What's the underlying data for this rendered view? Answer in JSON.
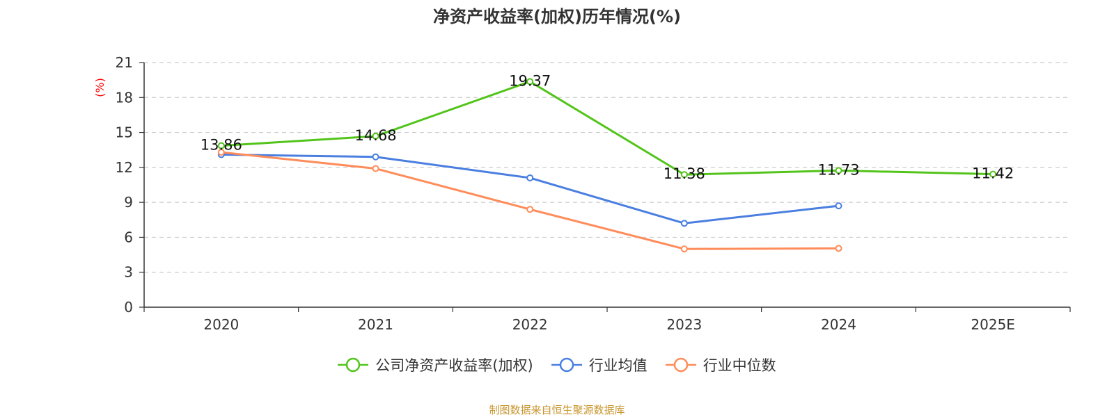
{
  "title": "净资产收益率(加权)历年情况(%)",
  "source_text": "制图数据来自恒生聚源数据库",
  "chart_data": {
    "type": "line",
    "title": "净资产收益率(加权)历年情况(%)",
    "xlabel": "",
    "ylabel": "(%)",
    "categories": [
      "2020",
      "2021",
      "2022",
      "2023",
      "2024",
      "2025E"
    ],
    "ylim": [
      0,
      21
    ],
    "yticks": [
      0,
      3,
      6,
      9,
      12,
      15,
      18,
      21
    ],
    "grid": true,
    "legend_position": "bottom",
    "series": [
      {
        "name": "公司净资产收益率(加权)",
        "color": "#52c41a",
        "values": [
          13.86,
          14.68,
          19.37,
          11.38,
          11.73,
          11.42
        ],
        "data_labels": [
          "13.86",
          "14.68",
          "19.37",
          "11.38",
          "11.73",
          "11.42"
        ]
      },
      {
        "name": "行业均值",
        "color": "#4a7fe0",
        "values": [
          13.1,
          12.9,
          11.1,
          7.2,
          8.7,
          null
        ],
        "data_labels": null
      },
      {
        "name": "行业中位数",
        "color": "#ff8c5a",
        "values": [
          13.3,
          11.9,
          8.4,
          5.0,
          5.05,
          null
        ],
        "data_labels": null
      }
    ]
  }
}
